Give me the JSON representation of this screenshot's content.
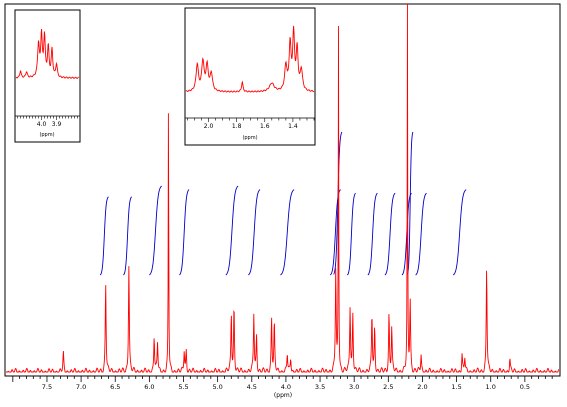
{
  "chart_data": [
    {
      "type": "line",
      "panel": "main",
      "xlabel": "(ppm)",
      "x_reversed": true,
      "xlim": [
        8.1,
        0.0
      ],
      "tick_labels": [
        "7.5",
        "7.0",
        "6.5",
        "6.0",
        "5.5",
        "5.0",
        "4.5",
        "4.0",
        "3.5",
        "3.0",
        "2.5",
        "2.0",
        "1.5",
        "1.0",
        "0.5"
      ],
      "tick_values": [
        7.5,
        7.0,
        6.5,
        6.0,
        5.5,
        5.0,
        4.5,
        4.0,
        3.5,
        3.0,
        2.5,
        2.0,
        1.5,
        1.0,
        0.5
      ],
      "ylim": [
        0,
        1.0
      ],
      "series_color": "#ff0000",
      "integral_color": "#0000cc",
      "peaks": [
        {
          "x": 7.26,
          "y": 0.05
        },
        {
          "x": 6.64,
          "y": 0.25
        },
        {
          "x": 6.3,
          "y": 0.3
        },
        {
          "x": 5.93,
          "y": 0.1
        },
        {
          "x": 5.88,
          "y": 0.08
        },
        {
          "x": 5.72,
          "y": 0.78
        },
        {
          "x": 5.49,
          "y": 0.06
        },
        {
          "x": 5.46,
          "y": 0.06
        },
        {
          "x": 4.8,
          "y": 0.16
        },
        {
          "x": 4.76,
          "y": 0.18
        },
        {
          "x": 4.47,
          "y": 0.16
        },
        {
          "x": 4.43,
          "y": 0.1
        },
        {
          "x": 4.21,
          "y": 0.15
        },
        {
          "x": 4.17,
          "y": 0.13
        },
        {
          "x": 3.98,
          "y": 0.05
        },
        {
          "x": 3.93,
          "y": 0.04
        },
        {
          "x": 3.27,
          "y": 0.28
        },
        {
          "x": 3.23,
          "y": 0.95
        },
        {
          "x": 3.06,
          "y": 0.18
        },
        {
          "x": 3.02,
          "y": 0.16
        },
        {
          "x": 2.74,
          "y": 0.16
        },
        {
          "x": 2.7,
          "y": 0.12
        },
        {
          "x": 2.49,
          "y": 0.16
        },
        {
          "x": 2.45,
          "y": 0.12
        },
        {
          "x": 2.22,
          "y": 1.0
        },
        {
          "x": 2.18,
          "y": 0.2
        },
        {
          "x": 2.02,
          "y": 0.05
        },
        {
          "x": 1.42,
          "y": 0.05
        },
        {
          "x": 1.38,
          "y": 0.04
        },
        {
          "x": 1.06,
          "y": 0.29
        },
        {
          "x": 0.72,
          "y": 0.04
        }
      ],
      "integrals": [
        {
          "x_start": 6.72,
          "x_end": 6.6,
          "height": 0.22
        },
        {
          "x_start": 6.38,
          "x_end": 6.26,
          "height": 0.22
        },
        {
          "x_start": 6.0,
          "x_end": 5.82,
          "height": 0.25
        },
        {
          "x_start": 5.56,
          "x_end": 5.42,
          "height": 0.24
        },
        {
          "x_start": 4.88,
          "x_end": 4.7,
          "height": 0.25
        },
        {
          "x_start": 4.55,
          "x_end": 4.38,
          "height": 0.24
        },
        {
          "x_start": 4.08,
          "x_end": 3.88,
          "height": 0.24
        },
        {
          "x_start": 3.35,
          "x_end": 3.2,
          "height": 0.24
        },
        {
          "x_start": 3.3,
          "x_end": 3.18,
          "height": 0.4
        },
        {
          "x_start": 3.1,
          "x_end": 2.98,
          "height": 0.23
        },
        {
          "x_start": 2.8,
          "x_end": 2.66,
          "height": 0.23
        },
        {
          "x_start": 2.55,
          "x_end": 2.4,
          "height": 0.23
        },
        {
          "x_start": 2.3,
          "x_end": 2.16,
          "height": 0.23
        },
        {
          "x_start": 2.22,
          "x_end": 2.14,
          "height": 0.4
        },
        {
          "x_start": 2.1,
          "x_end": 1.94,
          "height": 0.23
        },
        {
          "x_start": 1.55,
          "x_end": 1.36,
          "height": 0.24
        }
      ]
    },
    {
      "type": "line",
      "panel": "inset-left",
      "xlabel": "(ppm)",
      "x_reversed": true,
      "xlim": [
        4.17,
        3.75
      ],
      "tick_labels": [
        "4.0",
        "3.9"
      ],
      "tick_values": [
        4.0,
        3.9
      ],
      "series_color": "#ff0000"
    },
    {
      "type": "line",
      "panel": "inset-center",
      "xlabel": "(ppm)",
      "x_reversed": true,
      "xlim": [
        2.16,
        1.25
      ],
      "tick_labels": [
        "2.0",
        "1.8",
        "1.6",
        "1.4"
      ],
      "tick_values": [
        2.0,
        1.8,
        1.6,
        1.4
      ],
      "series_color": "#ff0000"
    }
  ]
}
